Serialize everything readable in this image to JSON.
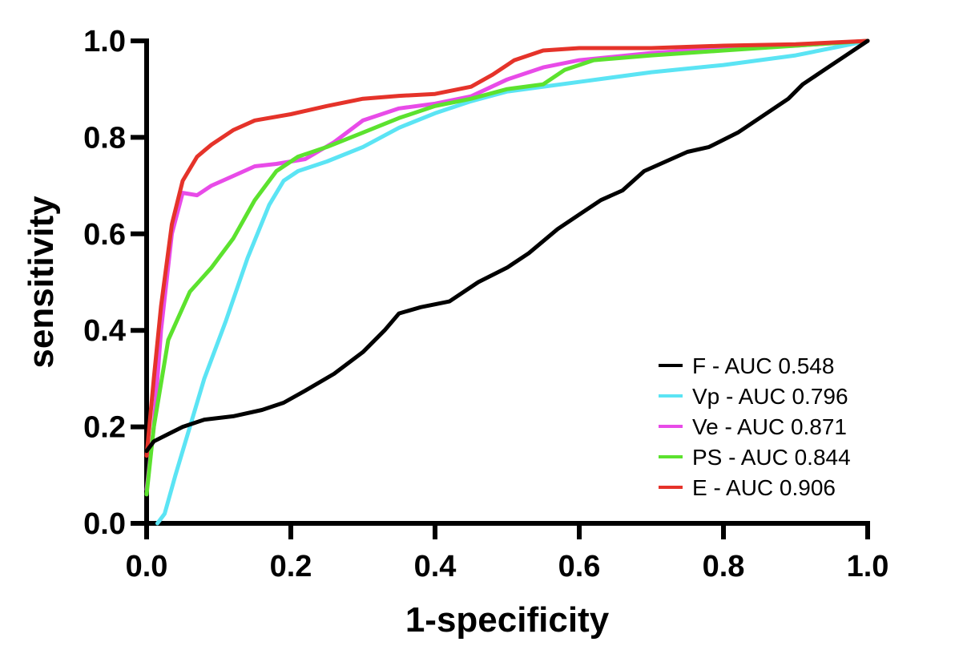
{
  "chart_data": {
    "type": "line",
    "title": "",
    "xlabel": "1-specificity",
    "ylabel": "sensitivity",
    "xlim": [
      0,
      1
    ],
    "ylim": [
      0,
      1
    ],
    "xticks": [
      0.0,
      0.2,
      0.4,
      0.6,
      0.8,
      1.0
    ],
    "yticks": [
      0.0,
      0.2,
      0.4,
      0.6,
      0.8,
      1.0
    ],
    "xtick_labels": [
      "0.0",
      "0.2",
      "0.4",
      "0.6",
      "0.8",
      "1.0"
    ],
    "ytick_labels": [
      "0.0",
      "0.2",
      "0.4",
      "0.6",
      "0.8",
      "1.0"
    ],
    "grid": false,
    "legend_position": "bottom-right",
    "series": [
      {
        "name": "F - AUC 0.548",
        "color": "#000000",
        "points": [
          [
            0,
            0.15
          ],
          [
            0.01,
            0.17
          ],
          [
            0.03,
            0.185
          ],
          [
            0.05,
            0.2
          ],
          [
            0.08,
            0.215
          ],
          [
            0.12,
            0.222
          ],
          [
            0.16,
            0.235
          ],
          [
            0.19,
            0.25
          ],
          [
            0.22,
            0.275
          ],
          [
            0.26,
            0.31
          ],
          [
            0.3,
            0.355
          ],
          [
            0.33,
            0.4
          ],
          [
            0.35,
            0.435
          ],
          [
            0.38,
            0.448
          ],
          [
            0.42,
            0.46
          ],
          [
            0.46,
            0.5
          ],
          [
            0.5,
            0.53
          ],
          [
            0.53,
            0.56
          ],
          [
            0.57,
            0.61
          ],
          [
            0.6,
            0.64
          ],
          [
            0.63,
            0.67
          ],
          [
            0.66,
            0.69
          ],
          [
            0.69,
            0.73
          ],
          [
            0.72,
            0.75
          ],
          [
            0.75,
            0.77
          ],
          [
            0.78,
            0.78
          ],
          [
            0.82,
            0.81
          ],
          [
            0.86,
            0.85
          ],
          [
            0.89,
            0.88
          ],
          [
            0.91,
            0.91
          ],
          [
            0.94,
            0.94
          ],
          [
            0.97,
            0.97
          ],
          [
            1.0,
            1.0
          ]
        ]
      },
      {
        "name": "Vp - AUC 0.796",
        "color": "#5BE4F4",
        "points": [
          [
            0.015,
            0
          ],
          [
            0.025,
            0.02
          ],
          [
            0.04,
            0.1
          ],
          [
            0.06,
            0.2
          ],
          [
            0.08,
            0.3
          ],
          [
            0.11,
            0.42
          ],
          [
            0.14,
            0.55
          ],
          [
            0.17,
            0.66
          ],
          [
            0.19,
            0.71
          ],
          [
            0.21,
            0.73
          ],
          [
            0.25,
            0.75
          ],
          [
            0.3,
            0.78
          ],
          [
            0.35,
            0.82
          ],
          [
            0.4,
            0.85
          ],
          [
            0.45,
            0.875
          ],
          [
            0.5,
            0.895
          ],
          [
            0.6,
            0.915
          ],
          [
            0.7,
            0.935
          ],
          [
            0.8,
            0.95
          ],
          [
            0.9,
            0.97
          ],
          [
            1.0,
            1.0
          ]
        ]
      },
      {
        "name": "Ve - AUC 0.871",
        "color": "#E84BE8",
        "points": [
          [
            0,
            0.07
          ],
          [
            0.01,
            0.2
          ],
          [
            0.02,
            0.4
          ],
          [
            0.035,
            0.6
          ],
          [
            0.05,
            0.685
          ],
          [
            0.07,
            0.68
          ],
          [
            0.09,
            0.7
          ],
          [
            0.12,
            0.72
          ],
          [
            0.15,
            0.74
          ],
          [
            0.18,
            0.745
          ],
          [
            0.22,
            0.755
          ],
          [
            0.26,
            0.79
          ],
          [
            0.3,
            0.835
          ],
          [
            0.35,
            0.86
          ],
          [
            0.4,
            0.87
          ],
          [
            0.45,
            0.885
          ],
          [
            0.5,
            0.92
          ],
          [
            0.55,
            0.945
          ],
          [
            0.6,
            0.96
          ],
          [
            0.7,
            0.975
          ],
          [
            0.8,
            0.985
          ],
          [
            0.9,
            0.99
          ],
          [
            1.0,
            1.0
          ]
        ]
      },
      {
        "name": "PS - AUC 0.844",
        "color": "#5CE22E",
        "points": [
          [
            0,
            0.06
          ],
          [
            0.01,
            0.2
          ],
          [
            0.03,
            0.38
          ],
          [
            0.06,
            0.48
          ],
          [
            0.09,
            0.53
          ],
          [
            0.12,
            0.59
          ],
          [
            0.15,
            0.67
          ],
          [
            0.18,
            0.73
          ],
          [
            0.21,
            0.76
          ],
          [
            0.25,
            0.78
          ],
          [
            0.3,
            0.81
          ],
          [
            0.35,
            0.84
          ],
          [
            0.4,
            0.865
          ],
          [
            0.45,
            0.88
          ],
          [
            0.5,
            0.9
          ],
          [
            0.55,
            0.91
          ],
          [
            0.58,
            0.94
          ],
          [
            0.62,
            0.96
          ],
          [
            0.7,
            0.97
          ],
          [
            0.8,
            0.98
          ],
          [
            0.9,
            0.99
          ],
          [
            1.0,
            1.0
          ]
        ]
      },
      {
        "name": "E - AUC 0.906",
        "color": "#E5332A",
        "points": [
          [
            0,
            0.14
          ],
          [
            0.01,
            0.3
          ],
          [
            0.02,
            0.45
          ],
          [
            0.035,
            0.62
          ],
          [
            0.05,
            0.71
          ],
          [
            0.07,
            0.76
          ],
          [
            0.09,
            0.785
          ],
          [
            0.12,
            0.815
          ],
          [
            0.15,
            0.835
          ],
          [
            0.2,
            0.848
          ],
          [
            0.25,
            0.865
          ],
          [
            0.3,
            0.88
          ],
          [
            0.35,
            0.886
          ],
          [
            0.4,
            0.89
          ],
          [
            0.45,
            0.905
          ],
          [
            0.48,
            0.93
          ],
          [
            0.51,
            0.96
          ],
          [
            0.55,
            0.98
          ],
          [
            0.6,
            0.985
          ],
          [
            0.7,
            0.985
          ],
          [
            0.8,
            0.99
          ],
          [
            0.9,
            0.993
          ],
          [
            1.0,
            1.0
          ]
        ]
      }
    ]
  }
}
